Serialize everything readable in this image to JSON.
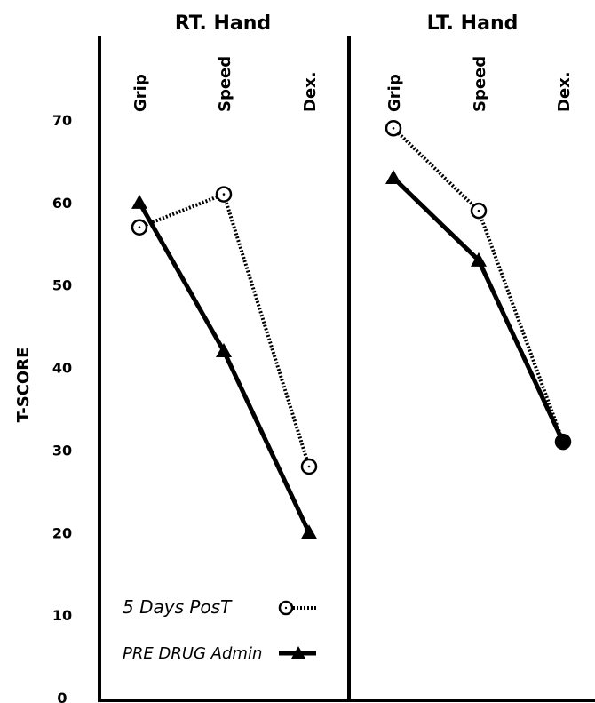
{
  "chart_data": {
    "type": "line",
    "ylabel": "T-SCORE",
    "ylim": [
      0,
      70
    ],
    "yticks": [
      "0",
      "10",
      "20",
      "30",
      "40",
      "50",
      "60",
      "70"
    ],
    "panels": [
      {
        "title": "RT. Hand",
        "categories": [
          "Grip",
          "Speed",
          "Dex."
        ],
        "series": [
          {
            "name": "5 Days Post",
            "values": [
              57,
              61,
              28
            ]
          },
          {
            "name": "Pre Drug Admin",
            "values": [
              60,
              42,
              20
            ]
          }
        ]
      },
      {
        "title": "LT. Hand",
        "categories": [
          "Grip",
          "Speed",
          "Dex."
        ],
        "series": [
          {
            "name": "5 Days Post",
            "values": [
              69,
              59,
              31
            ]
          },
          {
            "name": "Pre Drug Admin",
            "values": [
              63,
              53,
              31
            ]
          }
        ]
      }
    ],
    "legend": [
      {
        "label": "5 Days PosT",
        "marker": "circle",
        "style": "dotted"
      },
      {
        "label": "PRE DRUG Admin",
        "marker": "triangle",
        "style": "solid"
      }
    ],
    "legend_position": "bottom-left"
  }
}
